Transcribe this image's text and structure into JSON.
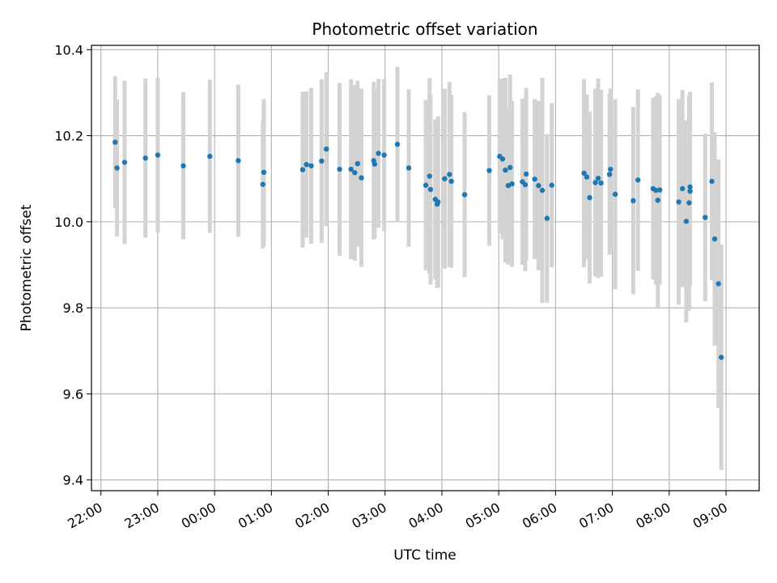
{
  "chart_data": {
    "type": "scatter",
    "title": "Photometric offset variation",
    "xlabel": "UTC time",
    "ylabel": "Photometric offset",
    "xlim": [
      "21:50",
      "09:35"
    ],
    "ylim": [
      9.375,
      10.41
    ],
    "xticks": [
      "22:00",
      "23:00",
      "00:00",
      "01:00",
      "02:00",
      "03:00",
      "04:00",
      "05:00",
      "06:00",
      "07:00",
      "08:00",
      "09:00"
    ],
    "yticks": [
      "9.4",
      "9.6",
      "9.8",
      "10.0",
      "10.2",
      "10.4"
    ],
    "grid": true,
    "colors": {
      "point": "#1f77b4",
      "errorbar": "#d3d3d3",
      "grid": "#b0b0b0"
    },
    "x": [
      "22:15",
      "22:17",
      "22:25",
      "22:47",
      "23:00",
      "23:27",
      "23:55",
      "00:25",
      "00:51",
      "00:52",
      "01:33",
      "01:37",
      "01:42",
      "01:53",
      "01:58",
      "02:12",
      "02:24",
      "02:28",
      "02:31",
      "02:35",
      "02:48",
      "02:49",
      "02:53",
      "02:59",
      "03:13",
      "03:25",
      "03:43",
      "03:47",
      "03:48",
      "03:53",
      "03:55",
      "03:56",
      "04:03",
      "04:08",
      "04:10",
      "04:24",
      "04:50",
      "05:01",
      "05:04",
      "05:07",
      "05:10",
      "05:12",
      "05:14",
      "05:25",
      "05:28",
      "05:29",
      "05:38",
      "05:42",
      "05:46",
      "05:51",
      "05:56",
      "06:30",
      "06:33",
      "06:36",
      "06:42",
      "06:45",
      "06:48",
      "06:57",
      "06:58",
      "07:03",
      "07:22",
      "07:27",
      "07:43",
      "07:46",
      "07:48",
      "07:50",
      "08:10",
      "08:14",
      "08:18",
      "08:21",
      "08:22",
      "08:22",
      "08:38",
      "08:45",
      "08:48",
      "08:52",
      "08:55"
    ],
    "y": [
      10.185,
      10.125,
      10.138,
      10.148,
      10.155,
      10.13,
      10.152,
      10.142,
      10.087,
      10.115,
      10.121,
      10.133,
      10.13,
      10.141,
      10.169,
      10.122,
      10.122,
      10.114,
      10.135,
      10.102,
      10.142,
      10.134,
      10.159,
      10.155,
      10.18,
      10.125,
      10.085,
      10.106,
      10.075,
      10.052,
      10.041,
      10.046,
      10.1,
      10.11,
      10.094,
      10.063,
      10.119,
      10.152,
      10.146,
      10.12,
      10.084,
      10.126,
      10.088,
      10.093,
      10.086,
      10.111,
      10.099,
      10.084,
      10.073,
      10.008,
      10.085,
      10.113,
      10.104,
      10.056,
      10.091,
      10.101,
      10.09,
      10.11,
      10.122,
      10.064,
      10.049,
      10.097,
      10.077,
      10.073,
      10.05,
      10.074,
      10.046,
      10.077,
      10.001,
      10.044,
      10.071,
      10.081,
      10.01,
      10.094,
      9.96,
      9.856,
      9.685
    ],
    "yerr": [
      0.153,
      0.159,
      0.19,
      0.185,
      0.18,
      0.171,
      0.178,
      0.177,
      0.149,
      0.17,
      0.181,
      0.17,
      0.181,
      0.19,
      0.179,
      0.201,
      0.209,
      0.204,
      0.193,
      0.207,
      0.183,
      0.173,
      0.173,
      0.177,
      0.18,
      0.183,
      0.198,
      0.228,
      0.221,
      0.186,
      0.195,
      0.199,
      0.209,
      0.215,
      0.201,
      0.192,
      0.175,
      0.18,
      0.187,
      0.215,
      0.184,
      0.216,
      0.193,
      0.193,
      0.201,
      0.2,
      0.186,
      0.197,
      0.262,
      0.196,
      0.191,
      0.219,
      0.192,
      0.2,
      0.218,
      0.232,
      0.217,
      0.187,
      0.188,
      0.221,
      0.218,
      0.211,
      0.211,
      0.219,
      0.25,
      0.22,
      0.239,
      0.229,
      0.235,
      0.25,
      0.221,
      0.221,
      0.195,
      0.23,
      0.248,
      0.289,
      0.262
    ]
  }
}
